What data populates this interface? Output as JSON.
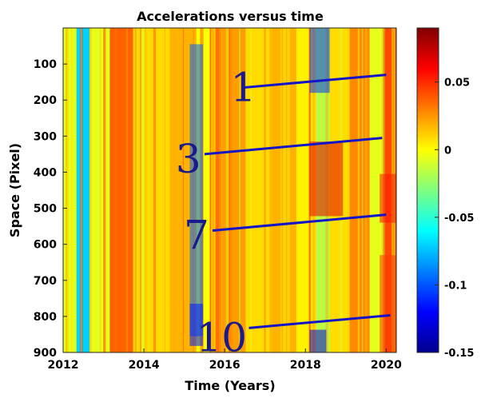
{
  "chart_data": {
    "type": "heatmap",
    "title": "Accelerations versus time",
    "xlabel": "Time (Years)",
    "ylabel": "Space (Pixel)",
    "xlim": [
      2012,
      2020.25
    ],
    "ylim": [
      0,
      900
    ],
    "y_reversed": true,
    "x_ticks": [
      "2012",
      "2014",
      "2016",
      "2018",
      "2020"
    ],
    "y_ticks": [
      "100",
      "200",
      "300",
      "400",
      "500",
      "600",
      "700",
      "800",
      "900"
    ],
    "colorbar": {
      "colormap": "jet",
      "range": [
        -0.15,
        0.09
      ],
      "ticks": [
        "0.05",
        "0",
        "-0.05",
        "-0.1",
        "-0.15"
      ]
    },
    "annotations": [
      {
        "label": "1",
        "x": [
          2016.5,
          2020.0
        ],
        "y": [
          165,
          130
        ]
      },
      {
        "label": "3",
        "x": [
          2015.5,
          2019.9
        ],
        "y": [
          350,
          305
        ]
      },
      {
        "label": "7",
        "x": [
          2015.7,
          2020.0
        ],
        "y": [
          562,
          518
        ]
      },
      {
        "label": "10",
        "x": [
          2016.6,
          2020.1
        ],
        "y": [
          832,
          797
        ]
      }
    ]
  }
}
